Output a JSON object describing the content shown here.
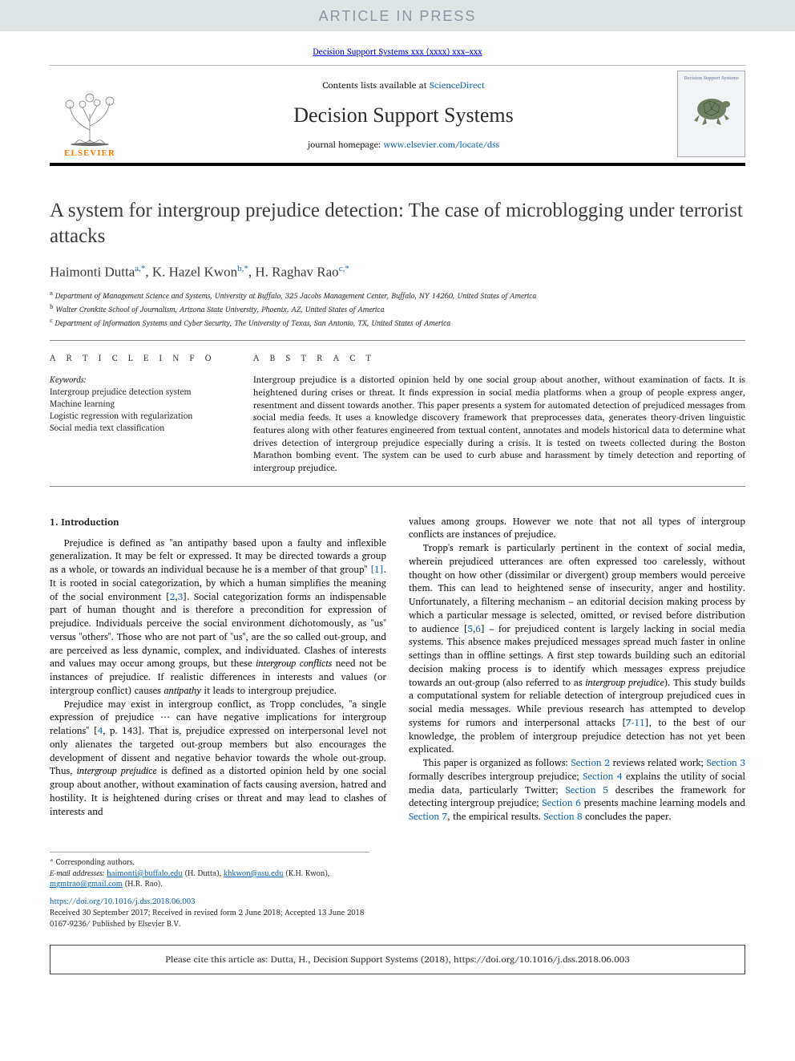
{
  "banner": {
    "label": "ARTICLE IN PRESS"
  },
  "citation_top": {
    "link_text": "Decision Support Systems xxx (xxxx) xxx–xxx"
  },
  "header": {
    "contents_prefix": "Contents lists available at ",
    "contents_link": "ScienceDirect",
    "journal_title": "Decision Support Systems",
    "homepage_prefix": "journal homepage: ",
    "homepage_link": "www.elsevier.com/locate/dss",
    "elsevier_word": "ELSEVIER",
    "cover_title": "Decision Support Systems"
  },
  "title": "A system for intergroup prejudice detection: The case of microblogging under terrorist attacks",
  "authors": {
    "a1_name": "Haimonti Dutta",
    "a1_sup": "a,*",
    "a2_name": "K. Hazel Kwon",
    "a2_sup": "b,*",
    "a3_name": "H. Raghav Rao",
    "a3_sup": "c,*"
  },
  "affiliations": {
    "a": "Department of Management Science and Systems, University at Buffalo, 325 Jacobs Management Center, Buffalo, NY 14260, United States of America",
    "b": "Walter Cronkite School of Journalism, Arizona State University, Phoenix, AZ, United States of America",
    "c": "Department of Information Systems and Cyber Security, The University of Texas, San Antonio, TX, United States of America"
  },
  "info_label": "A R T I C L E  I N F O",
  "abs_label": "A B S T R A C T",
  "keywords_title": "Keywords:",
  "keywords": [
    "Intergroup prejudice detection system",
    "Machine learning",
    "Logistic regression with regularization",
    "Social media text classification"
  ],
  "abstract_text": "Intergroup prejudice is a distorted opinion held by one social group about another, without examination of facts. It is heightened during crises or threat. It finds expression in social media platforms when a group of people express anger, resentment and dissent towards another. This paper presents a system for automated detection of prejudiced messages from social media feeds. It uses a knowledge discovery framework that preprocesses data, generates theory-driven linguistic features along with other features engineered from textual content, annotates and models historical data to determine what drives detection of intergroup prejudice especially during a crisis. It is tested on tweets collected during the Boston Marathon bombing event. The system can be used to curb abuse and harassment by timely detection and reporting of intergroup prejudice.",
  "section1_title": "1. Introduction",
  "para1": "Prejudice is defined as \"an antipathy based upon a faulty and inflexible generalization. It may be felt or expressed. It may be directed towards a group as a whole, or towards an individual because he is a member of that group\" [1]. It is rooted in social categorization, by which a human simplifies the meaning of the social environment [2,3]. Social categorization forms an indispensable part of human thought and is therefore a precondition for expression of prejudice. Individuals perceive the social environment dichotomously, as \"us\" versus \"others\". Those who are not part of \"us\", are the so called out-group, and are perceived as less dynamic, complex, and individuated. Clashes of interests and values may occur among groups, but these intergroup conflicts need not be instances of prejudice. If realistic differences in interests and values (or intergroup conflict) causes antipathy it leads to intergroup prejudice.",
  "para2": "Prejudice may exist in intergroup conflict, as Tropp concludes, \"a single expression of prejudice ⋯ can have negative implications for intergroup relations\" [4, p. 143]. That is, prejudice expressed on interpersonal level not only alienates the targeted out-group members but also encourages the development of dissent and negative behavior towards the whole out-group. Thus, intergroup prejudice is defined as a distorted opinion held by one social group about another, without examination of facts causing aversion, hatred and hostility. It is heightened during crises or threat and may lead to clashes of interests and",
  "para3": "values among groups. However we note that not all types of intergroup conflicts are instances of prejudice.",
  "para4": "Tropp's remark is particularly pertinent in the context of social media, wherein prejudiced utterances are often expressed too carelessly, without thought on how other (dissimilar or divergent) group members would perceive them. This can lead to heightened sense of insecurity, anger and hostility. Unfortunately, a filtering mechanism – an editorial decision making process by which a particular message is selected, omitted, or revised before distribution to audience [5,6] – for prejudiced content is largely lacking in social media systems. This absence makes prejudiced messages spread much faster in online settings than in offline settings. A first step towards building such an editorial decision making process is to identify which messages express prejudice towards an out-group (also referred to as intergroup prejudice). This study builds a computational system for reliable detection of intergroup prejudiced cues in social media messages. While previous research has attempted to develop systems for rumors and interpersonal attacks [7-11], to the best of our knowledge, the problem of intergroup prejudice detection has not yet been explicated.",
  "para5": "This paper is organized as follows: Section 2 reviews related work; Section 3 formally describes intergroup prejudice; Section 4 explains the utility of social media data, particularly Twitter; Section 5 describes the framework for detecting intergroup prejudice; Section 6 presents machine learning models and Section 7, the empirical results. Section 8 concludes the paper.",
  "footnotes": {
    "corr": "* Corresponding authors.",
    "emails_label": "E-mail addresses:",
    "e1": "haimonti@buffalo.edu",
    "e1_name": " (H. Dutta), ",
    "e2": "khkwon@asu.edu",
    "e2_name": " (K.H. Kwon), ",
    "e3": "mgmtrao@gmail.com",
    "e3_name": " (H.R. Rao)."
  },
  "doi_block": {
    "doi": "https://doi.org/10.1016/j.dss.2018.06.003",
    "history": "Received 30 September 2017; Received in revised form 2 June 2018; Accepted 13 June 2018",
    "issn_pub": "0167-9236/ Published by Elsevier B.V."
  },
  "cite_box": "Please cite this article as: Dutta, H., Decision Support Systems (2018), https://doi.org/10.1016/j.dss.2018.06.003",
  "colors": {
    "link": "#1768b5",
    "banner_bg": "#dfe4e4",
    "banner_text": "#8c98a4",
    "elsevier_orange": "#ff7a00"
  }
}
